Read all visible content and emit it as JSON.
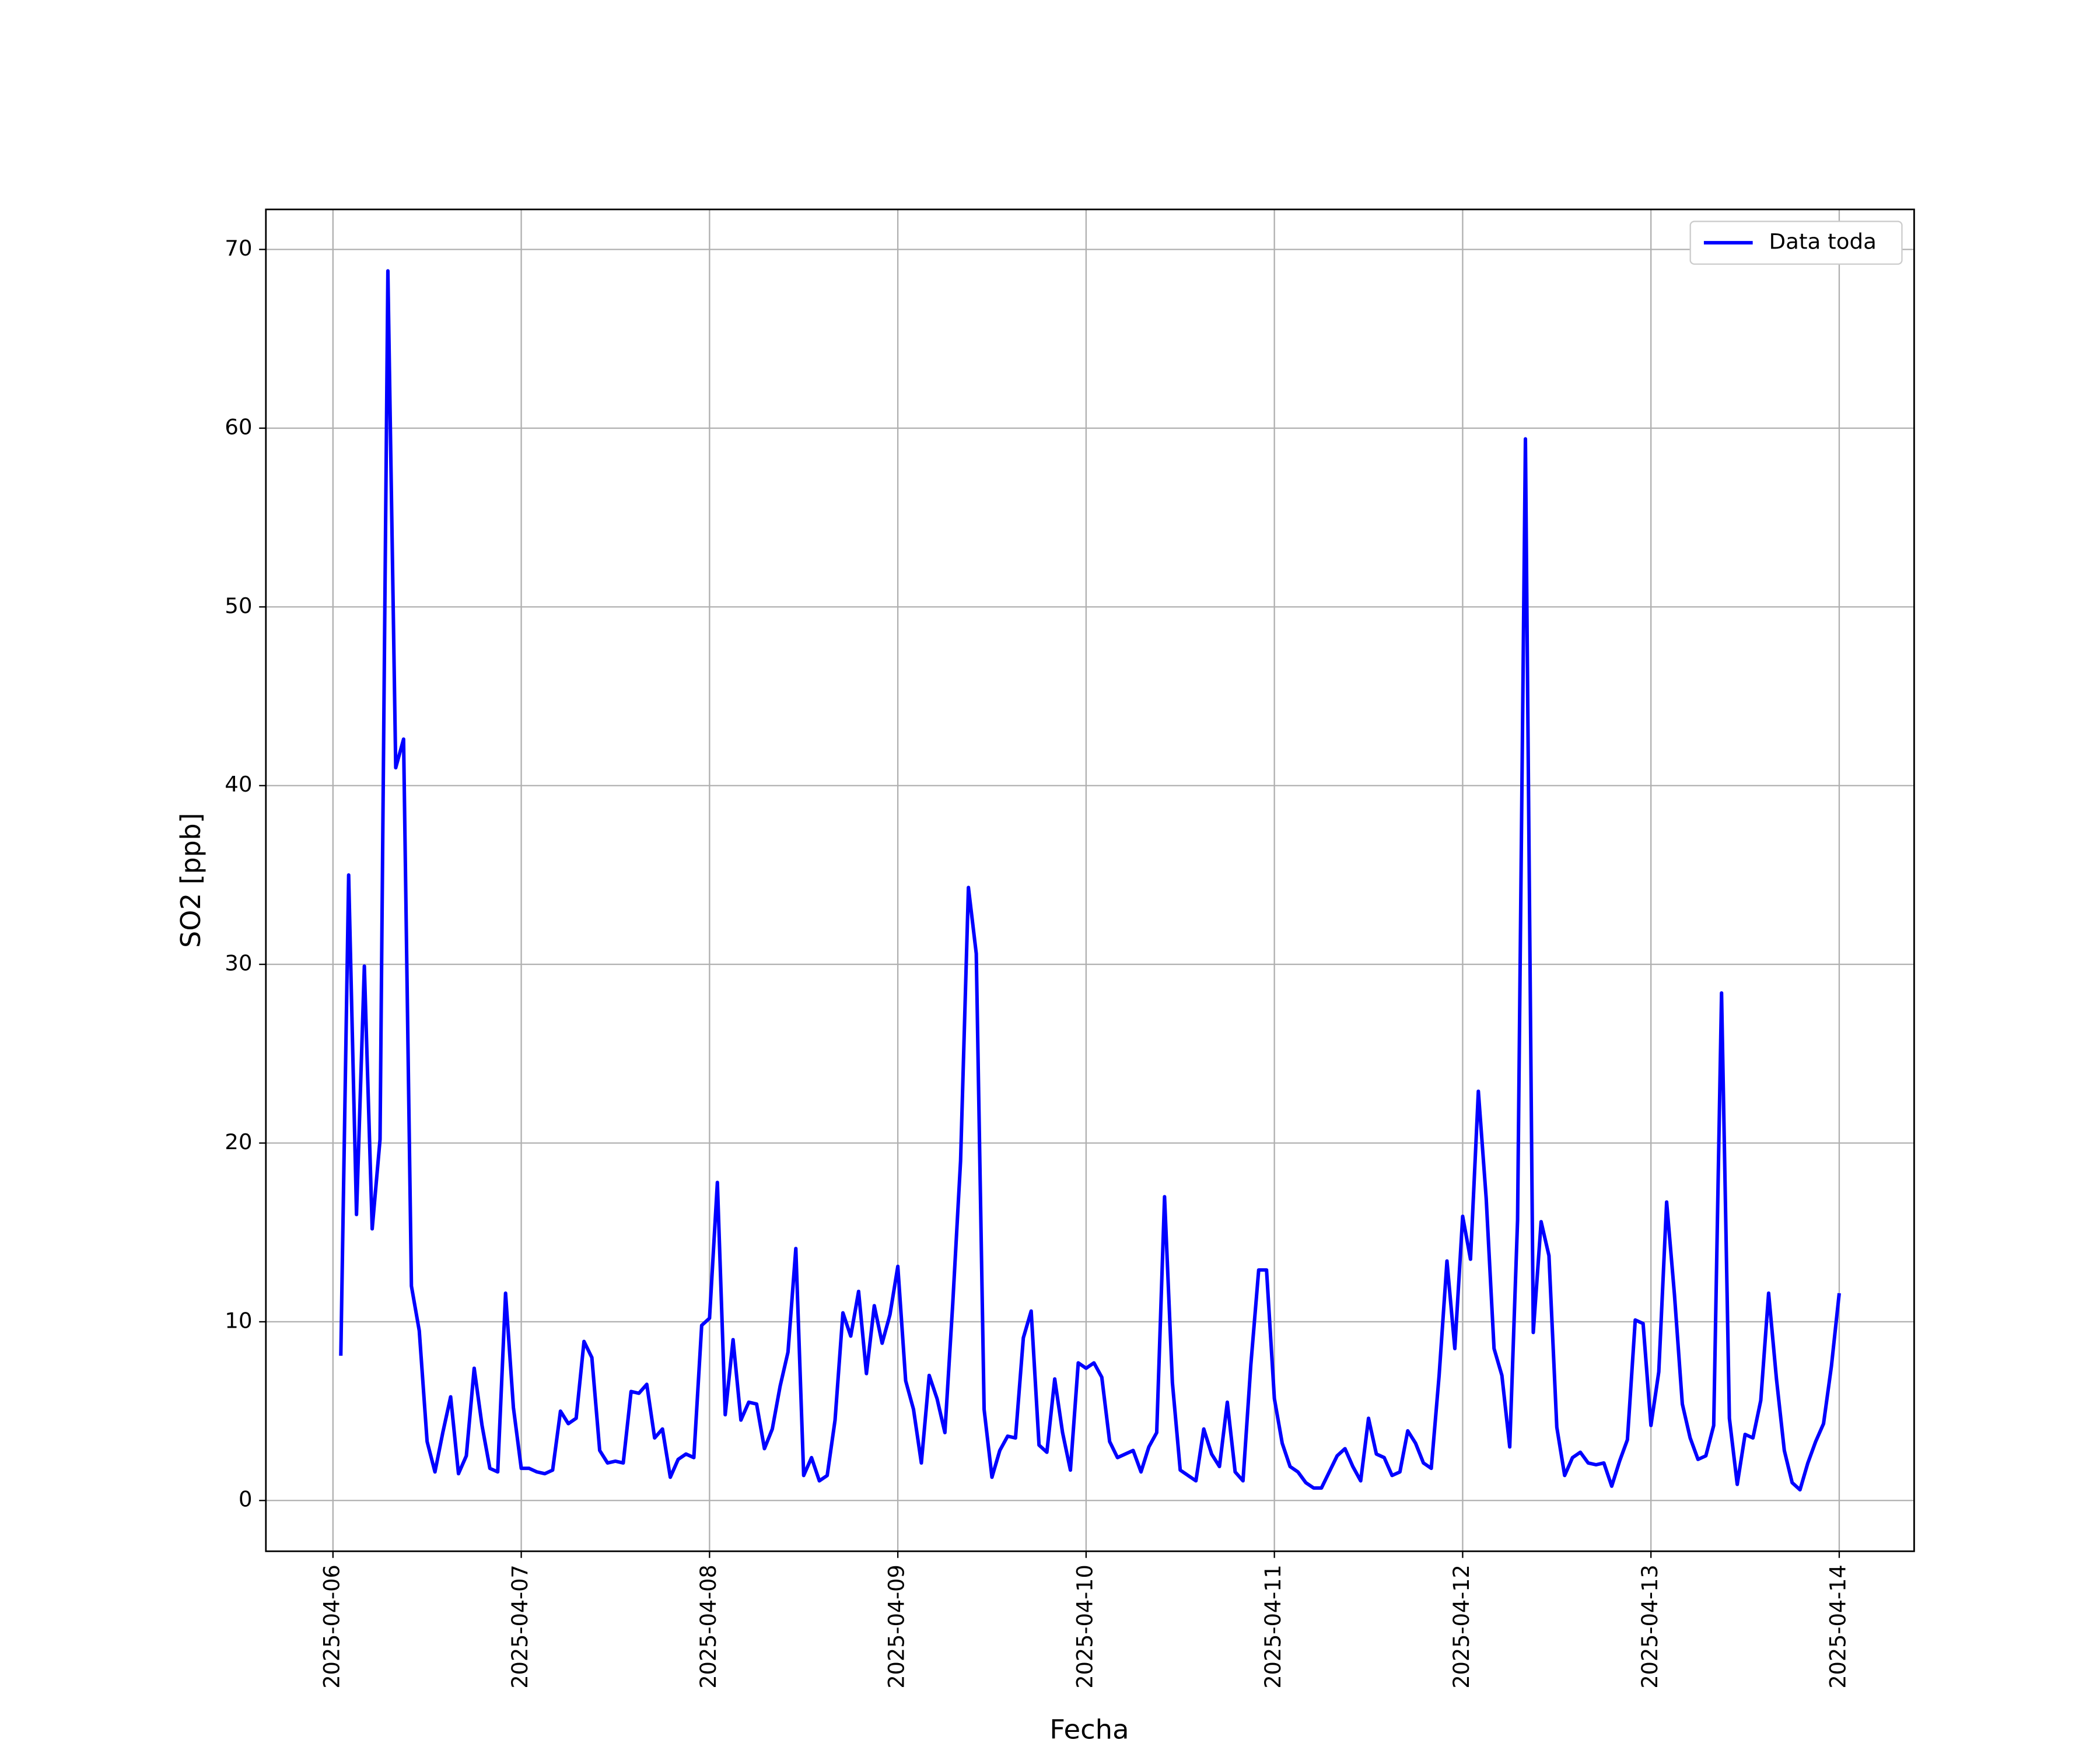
{
  "chart_data": {
    "type": "line",
    "x_label": "Fecha",
    "y_label": "SO2 [ppb]",
    "x": [
      "2025-04-06 01:00",
      "2025-04-06 02:00",
      "2025-04-06 03:00",
      "2025-04-06 04:00",
      "2025-04-06 05:00",
      "2025-04-06 06:00",
      "2025-04-06 07:00",
      "2025-04-06 08:00",
      "2025-04-06 09:00",
      "2025-04-06 10:00",
      "2025-04-06 11:00",
      "2025-04-06 12:00",
      "2025-04-06 13:00",
      "2025-04-06 14:00",
      "2025-04-06 15:00",
      "2025-04-06 16:00",
      "2025-04-06 17:00",
      "2025-04-06 18:00",
      "2025-04-06 19:00",
      "2025-04-06 20:00",
      "2025-04-06 21:00",
      "2025-04-06 22:00",
      "2025-04-06 23:00",
      "2025-04-07 00:00",
      "2025-04-07 01:00",
      "2025-04-07 02:00",
      "2025-04-07 03:00",
      "2025-04-07 04:00",
      "2025-04-07 05:00",
      "2025-04-07 06:00",
      "2025-04-07 07:00",
      "2025-04-07 08:00",
      "2025-04-07 09:00",
      "2025-04-07 10:00",
      "2025-04-07 11:00",
      "2025-04-07 12:00",
      "2025-04-07 13:00",
      "2025-04-07 14:00",
      "2025-04-07 15:00",
      "2025-04-07 16:00",
      "2025-04-07 17:00",
      "2025-04-07 18:00",
      "2025-04-07 19:00",
      "2025-04-07 20:00",
      "2025-04-07 21:00",
      "2025-04-07 22:00",
      "2025-04-07 23:00",
      "2025-04-08 00:00",
      "2025-04-08 01:00",
      "2025-04-08 02:00",
      "2025-04-08 03:00",
      "2025-04-08 04:00",
      "2025-04-08 05:00",
      "2025-04-08 06:00",
      "2025-04-08 07:00",
      "2025-04-08 08:00",
      "2025-04-08 09:00",
      "2025-04-08 10:00",
      "2025-04-08 11:00",
      "2025-04-08 12:00",
      "2025-04-08 13:00",
      "2025-04-08 14:00",
      "2025-04-08 15:00",
      "2025-04-08 16:00",
      "2025-04-08 17:00",
      "2025-04-08 18:00",
      "2025-04-08 19:00",
      "2025-04-08 20:00",
      "2025-04-08 21:00",
      "2025-04-08 22:00",
      "2025-04-08 23:00",
      "2025-04-09 00:00",
      "2025-04-09 01:00",
      "2025-04-09 02:00",
      "2025-04-09 03:00",
      "2025-04-09 04:00",
      "2025-04-09 05:00",
      "2025-04-09 06:00",
      "2025-04-09 07:00",
      "2025-04-09 08:00",
      "2025-04-09 09:00",
      "2025-04-09 10:00",
      "2025-04-09 11:00",
      "2025-04-09 12:00",
      "2025-04-09 13:00",
      "2025-04-09 14:00",
      "2025-04-09 15:00",
      "2025-04-09 16:00",
      "2025-04-09 17:00",
      "2025-04-09 18:00",
      "2025-04-09 19:00",
      "2025-04-09 20:00",
      "2025-04-09 21:00",
      "2025-04-09 22:00",
      "2025-04-09 23:00",
      "2025-04-10 00:00",
      "2025-04-10 01:00",
      "2025-04-10 02:00",
      "2025-04-10 03:00",
      "2025-04-10 04:00",
      "2025-04-10 05:00",
      "2025-04-10 06:00",
      "2025-04-10 07:00",
      "2025-04-10 08:00",
      "2025-04-10 09:00",
      "2025-04-10 10:00",
      "2025-04-10 11:00",
      "2025-04-10 12:00",
      "2025-04-10 13:00",
      "2025-04-10 14:00",
      "2025-04-10 15:00",
      "2025-04-10 16:00",
      "2025-04-10 17:00",
      "2025-04-10 18:00",
      "2025-04-10 19:00",
      "2025-04-10 20:00",
      "2025-04-10 21:00",
      "2025-04-10 22:00",
      "2025-04-10 23:00",
      "2025-04-11 00:00",
      "2025-04-11 01:00",
      "2025-04-11 02:00",
      "2025-04-11 03:00",
      "2025-04-11 04:00",
      "2025-04-11 05:00",
      "2025-04-11 06:00",
      "2025-04-11 07:00",
      "2025-04-11 08:00",
      "2025-04-11 09:00",
      "2025-04-11 10:00",
      "2025-04-11 11:00",
      "2025-04-11 12:00",
      "2025-04-11 13:00",
      "2025-04-11 14:00",
      "2025-04-11 15:00",
      "2025-04-11 16:00",
      "2025-04-11 17:00",
      "2025-04-11 18:00",
      "2025-04-11 19:00",
      "2025-04-11 20:00",
      "2025-04-11 21:00",
      "2025-04-11 22:00",
      "2025-04-11 23:00",
      "2025-04-12 00:00",
      "2025-04-12 01:00",
      "2025-04-12 02:00",
      "2025-04-12 03:00",
      "2025-04-12 04:00",
      "2025-04-12 05:00",
      "2025-04-12 06:00",
      "2025-04-12 07:00",
      "2025-04-12 08:00",
      "2025-04-12 09:00",
      "2025-04-12 10:00",
      "2025-04-12 11:00",
      "2025-04-12 12:00",
      "2025-04-12 13:00",
      "2025-04-12 14:00",
      "2025-04-12 15:00",
      "2025-04-12 16:00",
      "2025-04-12 17:00",
      "2025-04-12 18:00",
      "2025-04-12 19:00",
      "2025-04-12 20:00",
      "2025-04-12 21:00",
      "2025-04-12 22:00",
      "2025-04-12 23:00",
      "2025-04-13 00:00",
      "2025-04-13 01:00",
      "2025-04-13 02:00",
      "2025-04-13 03:00",
      "2025-04-13 04:00",
      "2025-04-13 05:00",
      "2025-04-13 06:00",
      "2025-04-13 07:00",
      "2025-04-13 08:00",
      "2025-04-13 09:00",
      "2025-04-13 10:00",
      "2025-04-13 11:00",
      "2025-04-13 12:00",
      "2025-04-13 13:00",
      "2025-04-13 14:00",
      "2025-04-13 15:00",
      "2025-04-13 16:00",
      "2025-04-13 17:00",
      "2025-04-13 18:00",
      "2025-04-13 19:00",
      "2025-04-13 20:00",
      "2025-04-13 21:00",
      "2025-04-13 22:00",
      "2025-04-13 23:00",
      "2025-04-14 00:00"
    ],
    "series": [
      {
        "name": "Data toda",
        "color": "#0000ff",
        "values": [
          8.1,
          35,
          16,
          29.9,
          15.2,
          20.2,
          68.8,
          41,
          42.6,
          12,
          9.5,
          3.3,
          1.6,
          3.8,
          5.8,
          1.5,
          2.5,
          7.4,
          4.2,
          1.8,
          1.6,
          11.6,
          5.2,
          1.8,
          1.8,
          1.6,
          1.5,
          1.7,
          5,
          4.3,
          4.6,
          8.9,
          8,
          2.8,
          2.1,
          2.2,
          2.1,
          6.1,
          6,
          6.5,
          3.5,
          4,
          1.3,
          2.3,
          2.6,
          2.4,
          9.8,
          10.2,
          17.8,
          4.8,
          9,
          4.5,
          5.5,
          5.4,
          2.9,
          4,
          6.4,
          8.3,
          14.1,
          1.4,
          2.4,
          1.1,
          1.4,
          4.5,
          10.5,
          9.2,
          11.7,
          7.1,
          10.9,
          8.8,
          10.4,
          13.1,
          6.7,
          5.1,
          2.1,
          7,
          5.7,
          3.8,
          11,
          19,
          34.3,
          30.6,
          5.1,
          1.3,
          2.8,
          3.6,
          3.5,
          9.1,
          10.6,
          3.1,
          2.7,
          6.8,
          3.8,
          1.7,
          7.7,
          7.4,
          7.7,
          6.9,
          3.3,
          2.4,
          2.6,
          2.8,
          1.6,
          3,
          3.8,
          17,
          6.6,
          1.7,
          1.4,
          1.1,
          4,
          2.6,
          1.9,
          5.5,
          1.6,
          1.1,
          7.6,
          12.9,
          12.9,
          5.7,
          3.2,
          1.9,
          1.6,
          1,
          0.7,
          0.7,
          1.6,
          2.5,
          2.9,
          1.9,
          1.1,
          4.6,
          2.6,
          2.4,
          1.4,
          1.6,
          3.9,
          3.2,
          2.1,
          1.8,
          7,
          13.4,
          8.5,
          15.9,
          13.5,
          22.9,
          16.9,
          8.5,
          7,
          3,
          15.7,
          59.4,
          9.4,
          15.6,
          13.7,
          4.1,
          1.4,
          2.4,
          2.7,
          2.1,
          2,
          2.1,
          0.8,
          2.2,
          3.4,
          10.1,
          9.9,
          4.2,
          7.2,
          16.7,
          11.5,
          5.4,
          3.5,
          2.3,
          2.5,
          4.2,
          28.4,
          4.6,
          0.9,
          3.7,
          3.5,
          5.6,
          11.6,
          6.8,
          2.8,
          1,
          0.6,
          2.1,
          3.3,
          4.3,
          7.5,
          11.6
        ]
      }
    ],
    "xlim": [
      "2025-04-05 15:27",
      "2025-04-14 09:33"
    ],
    "xticks": [
      "2025-04-06",
      "2025-04-07",
      "2025-04-08",
      "2025-04-09",
      "2025-04-10",
      "2025-04-11",
      "2025-04-12",
      "2025-04-13",
      "2025-04-14"
    ],
    "ylim": [
      -2.84,
      72.24
    ],
    "yticks": [
      0,
      10,
      20,
      30,
      40,
      50,
      60,
      70
    ],
    "grid": true,
    "legend": "upper right"
  }
}
